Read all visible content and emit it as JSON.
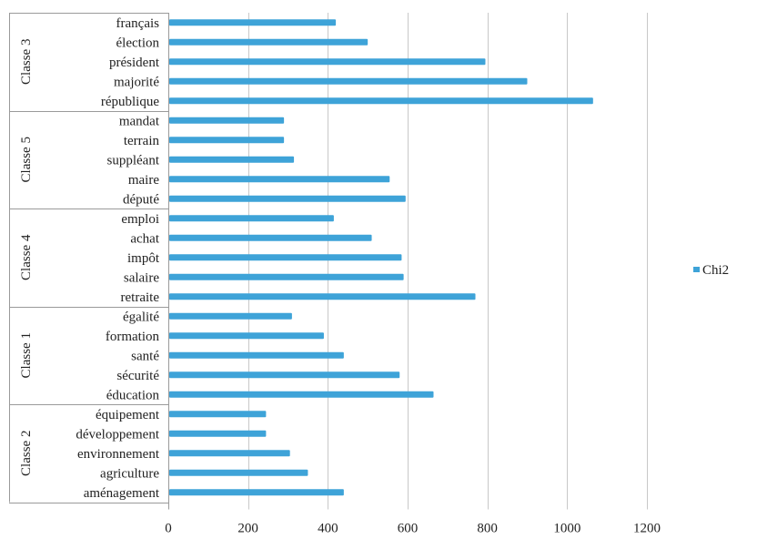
{
  "chart_data": {
    "type": "bar",
    "orientation": "horizontal",
    "grid": true,
    "legend_position": "right",
    "xlim": [
      0,
      1200
    ],
    "x_ticks": [
      "0",
      "200",
      "400",
      "600",
      "800",
      "1000",
      "1200"
    ],
    "series": [
      {
        "name": "Chi2",
        "color": "#3ea3d8"
      }
    ],
    "groups": [
      {
        "label": "Classe 3",
        "items": [
          {
            "label": "français",
            "value": 420
          },
          {
            "label": "élection",
            "value": 500
          },
          {
            "label": "président",
            "value": 795
          },
          {
            "label": "majorité",
            "value": 900
          },
          {
            "label": "république",
            "value": 1065
          }
        ]
      },
      {
        "label": "Classe 5",
        "items": [
          {
            "label": "mandat",
            "value": 290
          },
          {
            "label": "terrain",
            "value": 290
          },
          {
            "label": "suppléant",
            "value": 315
          },
          {
            "label": "maire",
            "value": 555
          },
          {
            "label": "député",
            "value": 595
          }
        ]
      },
      {
        "label": "Classe 4",
        "items": [
          {
            "label": "emploi",
            "value": 415
          },
          {
            "label": "achat",
            "value": 510
          },
          {
            "label": "impôt",
            "value": 585
          },
          {
            "label": "salaire",
            "value": 590
          },
          {
            "label": "retraite",
            "value": 770
          }
        ]
      },
      {
        "label": "Classe 1",
        "items": [
          {
            "label": "égalité",
            "value": 310
          },
          {
            "label": "formation",
            "value": 390
          },
          {
            "label": "santé",
            "value": 440
          },
          {
            "label": "sécurité",
            "value": 580
          },
          {
            "label": "éducation",
            "value": 665
          }
        ]
      },
      {
        "label": "Classe 2",
        "items": [
          {
            "label": "équipement",
            "value": 245
          },
          {
            "label": "développement",
            "value": 245
          },
          {
            "label": "environnement",
            "value": 305
          },
          {
            "label": "agriculture",
            "value": 350
          },
          {
            "label": "aménagement",
            "value": 440
          }
        ]
      }
    ]
  }
}
